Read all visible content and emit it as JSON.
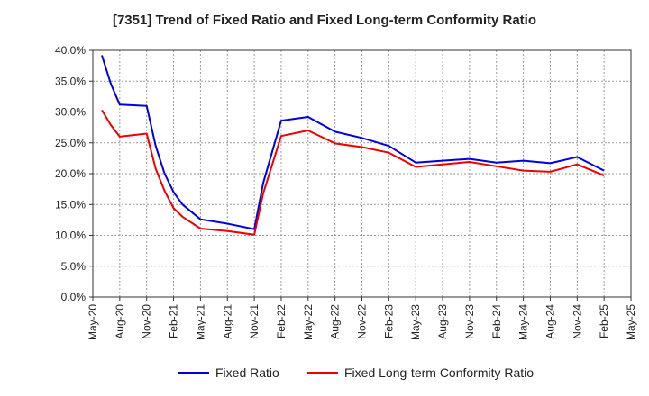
{
  "chart_data": {
    "type": "line",
    "title": "[7351]  Trend of Fixed Ratio and Fixed Long-term Conformity Ratio",
    "xlabel": "",
    "ylabel": "",
    "ylim": [
      0,
      40
    ],
    "y_ticks": [
      "0.0%",
      "5.0%",
      "10.0%",
      "15.0%",
      "20.0%",
      "25.0%",
      "30.0%",
      "35.0%",
      "40.0%"
    ],
    "x_range": [
      "2020-05",
      "2025-05"
    ],
    "x_ticks": [
      "May-20",
      "Aug-20",
      "Nov-20",
      "Feb-21",
      "May-21",
      "Aug-21",
      "Nov-21",
      "Feb-22",
      "May-22",
      "Aug-22",
      "Nov-22",
      "Feb-23",
      "May-23",
      "Aug-23",
      "Nov-23",
      "Feb-24",
      "May-24",
      "Aug-24",
      "Nov-24",
      "Feb-25",
      "May-25"
    ],
    "grid": true,
    "legend_position": "bottom-center",
    "x": [
      "2020-06",
      "2020-07",
      "2020-08",
      "2020-11",
      "2020-12",
      "2021-01",
      "2021-02",
      "2021-03",
      "2021-05",
      "2021-08",
      "2021-11",
      "2021-12",
      "2022-02",
      "2022-05",
      "2022-08",
      "2022-11",
      "2023-02",
      "2023-05",
      "2023-08",
      "2023-11",
      "2024-02",
      "2024-05",
      "2024-08",
      "2024-11",
      "2025-02"
    ],
    "series": [
      {
        "name": "Fixed Ratio",
        "color": "#0000dd",
        "values": [
          39.2,
          34.6,
          31.2,
          31.0,
          24.5,
          20.0,
          17.0,
          15.0,
          12.6,
          11.9,
          11.0,
          18.5,
          28.6,
          29.2,
          26.8,
          25.8,
          24.5,
          21.8,
          22.1,
          22.4,
          21.8,
          22.1,
          21.7,
          22.7,
          20.5
        ]
      },
      {
        "name": "Fixed Long-term Conformity Ratio",
        "color": "#ee0000",
        "values": [
          30.3,
          27.9,
          26.0,
          26.5,
          20.8,
          17.2,
          14.4,
          13.0,
          11.1,
          10.7,
          10.1,
          16.8,
          26.1,
          27.0,
          24.9,
          24.3,
          23.4,
          21.1,
          21.5,
          21.9,
          21.2,
          20.5,
          20.3,
          21.5,
          19.7
        ]
      }
    ]
  }
}
